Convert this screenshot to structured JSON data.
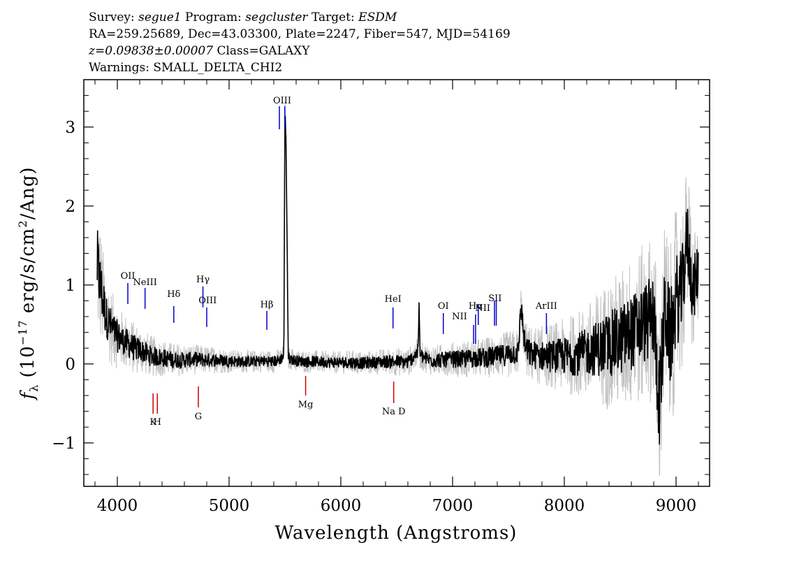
{
  "header": {
    "survey_label": "Survey:",
    "survey": "segue1",
    "program_label": "Program:",
    "program": "segcluster",
    "target_label": "Target:",
    "target": "ESDM",
    "coords": "RA=259.25689, Dec=43.03300, Plate=2247, Fiber=547, MJD=54169",
    "redshift": "z=0.09838±0.00007",
    "class": "Class=GALAXY",
    "warnings": "Warnings: SMALL_DELTA_CHI2"
  },
  "chart_data": {
    "type": "line",
    "xlabel": "Wavelength (Angstroms)",
    "ylabel": "f_λ (10^-17 erg/s/cm^2/Ang)",
    "xlim": [
      3700,
      9300
    ],
    "ylim": [
      -1.55,
      3.6
    ],
    "xticks": [
      4000,
      5000,
      6000,
      7000,
      8000,
      9000
    ],
    "yticks": [
      -1,
      0,
      1,
      2,
      3
    ],
    "xtick_labels": [
      "4000",
      "5000",
      "6000",
      "7000",
      "8000",
      "9000"
    ],
    "ytick_labels": [
      "−1",
      "0",
      "1",
      "2",
      "3"
    ],
    "x_range_data": [
      3820,
      9200
    ],
    "series": [
      {
        "role": "flux",
        "color": "#000000",
        "x": [
          3820,
          3860,
          3900,
          3950,
          4000,
          4050,
          4100,
          4150,
          4200,
          4300,
          4400,
          4500,
          4600,
          4700,
          4800,
          4900,
          5000,
          5100,
          5200,
          5300,
          5400,
          5450,
          5490,
          5500,
          5510,
          5530,
          5600,
          5700,
          5800,
          5900,
          6000,
          6100,
          6200,
          6300,
          6400,
          6500,
          6600,
          6690,
          6700,
          6710,
          6800,
          6900,
          7000,
          7100,
          7200,
          7300,
          7400,
          7500,
          7590,
          7610,
          7650,
          7700,
          7800,
          7900,
          8000,
          8100,
          8200,
          8300,
          8400,
          8500,
          8600,
          8700,
          8800,
          8850,
          8900,
          8950,
          9000,
          9050,
          9100,
          9150,
          9200
        ],
        "y": [
          1.25,
          0.9,
          0.6,
          0.45,
          0.35,
          0.3,
          0.25,
          0.2,
          0.18,
          0.1,
          0.08,
          0.05,
          0.05,
          0.06,
          0.05,
          0.05,
          0.04,
          0.03,
          0.03,
          0.04,
          0.03,
          0.05,
          0.1,
          3.2,
          2.8,
          0.08,
          0.04,
          0.03,
          0.03,
          0.02,
          0.02,
          0.02,
          0.01,
          0.02,
          0.03,
          0.03,
          0.02,
          0.15,
          0.7,
          0.1,
          0.05,
          0.05,
          0.06,
          0.06,
          0.08,
          0.08,
          0.1,
          0.12,
          0.15,
          0.75,
          0.2,
          0.12,
          0.1,
          0.1,
          0.1,
          0.12,
          0.15,
          0.2,
          0.25,
          0.3,
          0.4,
          0.5,
          0.6,
          -0.5,
          0.7,
          0.3,
          0.8,
          0.9,
          1.6,
          0.9,
          1.2
        ],
        "noise_amplitude": [
          0.8,
          0.6,
          0.45,
          0.4,
          0.35,
          0.3,
          0.3,
          0.28,
          0.25,
          0.22,
          0.2,
          0.18,
          0.17,
          0.16,
          0.15,
          0.14,
          0.13,
          0.12,
          0.12,
          0.12,
          0.12,
          0.12,
          0.12,
          0.12,
          0.12,
          0.12,
          0.12,
          0.12,
          0.12,
          0.12,
          0.12,
          0.13,
          0.13,
          0.13,
          0.14,
          0.15,
          0.15,
          0.15,
          0.15,
          0.15,
          0.16,
          0.17,
          0.18,
          0.2,
          0.2,
          0.22,
          0.22,
          0.25,
          0.25,
          0.25,
          0.28,
          0.3,
          0.32,
          0.35,
          0.4,
          0.45,
          0.5,
          0.6,
          0.7,
          0.75,
          0.8,
          0.85,
          0.9,
          1.0,
          1.0,
          1.0,
          1.0,
          0.9,
          0.8,
          0.7,
          0.6
        ]
      },
      {
        "role": "error",
        "color": "#c0c0c0"
      }
    ],
    "emission_lines": [
      {
        "label": "OII",
        "x": 4094,
        "color": "#0000cc"
      },
      {
        "label": "NeIII",
        "x": 4248,
        "color": "#0000cc"
      },
      {
        "label": "Hδ",
        "x": 4505,
        "color": "#0000cc"
      },
      {
        "label": "Hγ",
        "x": 4766,
        "color": "#0000cc"
      },
      {
        "label": "OIII",
        "x": 4800,
        "color": "#0000cc"
      },
      {
        "label": "Hβ",
        "x": 5338,
        "color": "#0000cc"
      },
      {
        "label": "OIII",
        "x": 5450,
        "color": "#0000cc"
      },
      {
        "label": "OIII",
        "x": 5499,
        "color": "#0000cc"
      },
      {
        "label": "HeI",
        "x": 6467,
        "color": "#0000cc"
      },
      {
        "label": "OI",
        "x": 6917,
        "color": "#0000cc"
      },
      {
        "label": "NII",
        "x": 7188,
        "color": "#0000cc"
      },
      {
        "label": "Hα",
        "x": 7206,
        "color": "#0000cc"
      },
      {
        "label": "NII",
        "x": 7230,
        "color": "#0000cc"
      },
      {
        "label": "SII",
        "x": 7375,
        "color": "#0000cc"
      },
      {
        "label": "SII",
        "x": 7391,
        "color": "#0000cc"
      },
      {
        "label": "ArIII",
        "x": 7840,
        "color": "#0000cc"
      }
    ],
    "absorption_lines": [
      {
        "label": "K",
        "x": 4320,
        "color": "#cc0000"
      },
      {
        "label": "H",
        "x": 4358,
        "color": "#cc0000"
      },
      {
        "label": "G",
        "x": 4725,
        "color": "#cc0000"
      },
      {
        "label": "Mg",
        "x": 5685,
        "color": "#cc0000"
      },
      {
        "label": "Na D",
        "x": 6473,
        "color": "#cc0000"
      }
    ]
  }
}
